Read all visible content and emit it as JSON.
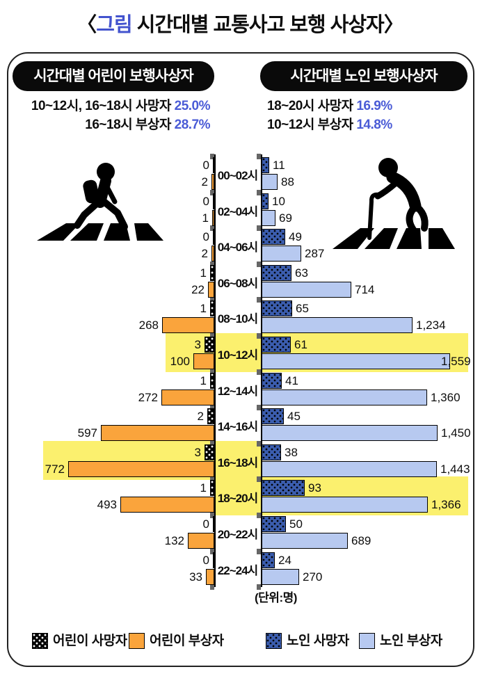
{
  "title": {
    "bracket_open": "〈",
    "highlight": "그림",
    "rest": " 시간대별 교통사고 보행 사상자",
    "bracket_close": "〉"
  },
  "left_panel": {
    "header": "시간대별 어린이 보행사상자",
    "subtitle_lines": [
      {
        "label": "10~12시, 16~18시 사망자 ",
        "value": "25.0%"
      },
      {
        "label": "16~18시 부상자 ",
        "value": "28.7%"
      }
    ]
  },
  "right_panel": {
    "header": "시간대별 노인 보행사상자",
    "subtitle_lines": [
      {
        "label": "18~20시 사망자 ",
        "value": "16.9%"
      },
      {
        "label": "10~12시 부상자 ",
        "value": "14.8%"
      }
    ]
  },
  "unit_note": "(단위:명)",
  "legend": [
    {
      "label": "어린이 사망자",
      "swatch": "sw-child-death"
    },
    {
      "label": "어린이 부상자",
      "swatch": "sw-child-injury"
    },
    {
      "label": "노인 사망자",
      "swatch": "sw-elder-death"
    },
    {
      "label": "노인 부상자",
      "swatch": "sw-elder-injury"
    }
  ],
  "colors": {
    "accent_blue": "#4353CE",
    "child_injury": "#FAA43C",
    "child_death": "#000000",
    "elder_injury": "#B7C9F0",
    "elder_death": "#3B5DAE",
    "highlight": "#FBF06E"
  },
  "chart_data": {
    "type": "bar",
    "orientation": "diverging-horizontal",
    "title": "시간대별 교통사고 보행 사상자",
    "categories": [
      "00~02시",
      "02~04시",
      "04~06시",
      "06~08시",
      "08~10시",
      "10~12시",
      "12~14시",
      "14~16시",
      "16~18시",
      "18~20시",
      "20~22시",
      "22~24시"
    ],
    "series": [
      {
        "name": "어린이 사망자",
        "side": "left",
        "values": [
          0,
          0,
          0,
          1,
          1,
          3,
          1,
          2,
          3,
          1,
          0,
          0
        ]
      },
      {
        "name": "어린이 부상자",
        "side": "left",
        "values": [
          2,
          1,
          2,
          22,
          268,
          100,
          272,
          597,
          772,
          493,
          132,
          33
        ]
      },
      {
        "name": "노인 사망자",
        "side": "right",
        "values": [
          11,
          10,
          49,
          63,
          65,
          61,
          41,
          45,
          38,
          93,
          50,
          24
        ]
      },
      {
        "name": "노인 부상자",
        "side": "right",
        "values": [
          88,
          69,
          287,
          714,
          1234,
          1559,
          1360,
          1450,
          1443,
          1366,
          689,
          270
        ]
      }
    ],
    "highlights": [
      {
        "category": "10~12시",
        "from": "labels_left",
        "to": "right_edge"
      },
      {
        "category": "16~18시",
        "from": "left_edge",
        "to": "center_right"
      },
      {
        "category": "18~20시",
        "from": "center_left",
        "to": "right_edge"
      }
    ],
    "unit": "명",
    "legend_position": "bottom",
    "grid": false
  }
}
